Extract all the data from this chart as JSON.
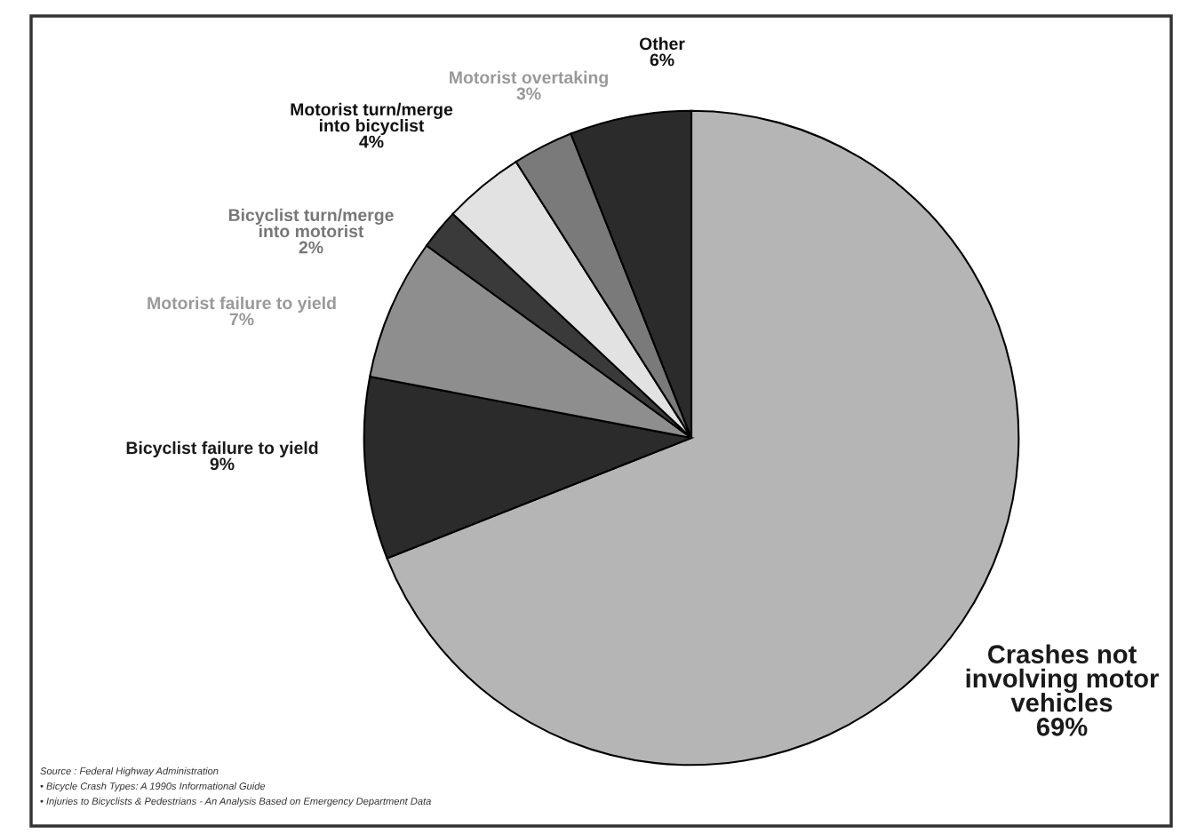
{
  "chart_data": {
    "type": "pie",
    "categories": [
      "Crashes not\ninvolving motor\nvehicles",
      "Bicyclist failure to yield",
      "Motorist failure to yield",
      "Bicyclist turn/merge\ninto motorist",
      "Motorist turn/merge\ninto bicyclist",
      "Motorist overtaking",
      "Other"
    ],
    "values": [
      69,
      9,
      7,
      2,
      4,
      3,
      6
    ],
    "value_labels": [
      "69%",
      "9%",
      "7%",
      "2%",
      "4%",
      "3%",
      "6%"
    ],
    "colors": [
      "#b5b5b5",
      "#2b2b2b",
      "#8e8e8e",
      "#3a3a3a",
      "#e2e2e2",
      "#7a7a7a",
      "#2b2b2b"
    ],
    "annotations": [
      "Source : Federal Highway Administration",
      "• Bicycle Crash Types: A 1990s Informational Guide",
      "• Injuries to Bicyclists & Pedestrians - An Analysis Based on Emergency Department Data"
    ],
    "legend": false
  }
}
